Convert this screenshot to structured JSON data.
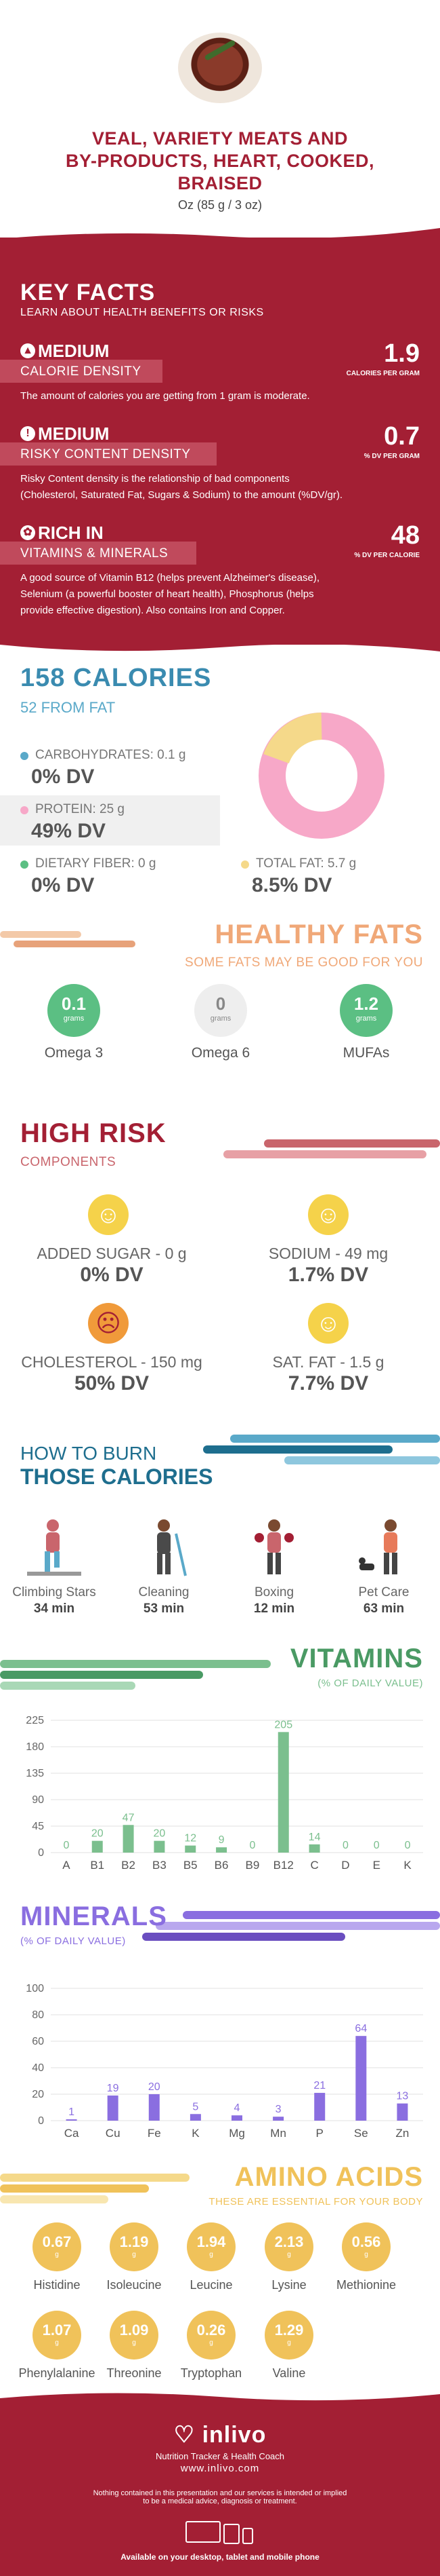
{
  "header": {
    "title_line1": "VEAL, VARIETY MEATS AND",
    "title_line2": "BY-PRODUCTS, HEART, COOKED,",
    "title_line3": "BRAISED",
    "serving": "Oz (85 g / 3 oz)"
  },
  "key_facts": {
    "title": "KEY FACTS",
    "subtitle": "LEARN ABOUT HEALTH BENEFITS OR RISKS",
    "items": [
      {
        "level": "MEDIUM",
        "label": "CALORIE DENSITY",
        "value": "1.9",
        "unit": "CALORIES PER GRAM",
        "icon": "flame-icon",
        "desc": "The amount of calories you are getting from 1 gram is moderate."
      },
      {
        "level": "MEDIUM",
        "label": "RISKY CONTENT DENSITY",
        "value": "0.7",
        "unit": "% DV PER GRAM",
        "icon": "warning-icon",
        "desc1": "Risky Content density is the relationship of bad components",
        "desc2": "(Cholesterol, Saturated Fat, Sugars & Sodium) to the amount (%DV/gr)."
      },
      {
        "level": "RICH  IN",
        "label": "VITAMINS & MINERALS",
        "value": "48",
        "unit": "% DV PER CALORIE",
        "icon": "leaf-icon",
        "desc1": "A good source of Vitamin B12 (helps prevent Alzheimer's disease),",
        "desc2": "Selenium (a powerful booster of heart health), Phosphorus (helps",
        "desc3": "provide effective digestion). Also contains Iron and Copper."
      }
    ]
  },
  "calories": {
    "title": "158 CALORIES",
    "from_fat": "52 FROM FAT",
    "carbs_label": "CARBOHYDRATES: 0.1 g",
    "carbs_dv": "0% DV",
    "protein_label": "PROTEIN: 25 g",
    "protein_dv": "49% DV",
    "fiber_label": "DIETARY FIBER: 0 g",
    "fiber_dv": "0% DV",
    "fat_label": "TOTAL FAT: 5.7 g",
    "fat_dv": "8.5% DV",
    "colors": {
      "carbs": "#5aa9c9",
      "protein": "#f7a8c8",
      "fiber": "#5bbf83",
      "fat": "#f5d98a"
    }
  },
  "healthy_fats": {
    "title": "HEALTHY FATS",
    "subtitle": "SOME FATS MAY BE GOOD FOR YOU",
    "unit": "grams",
    "items": [
      {
        "name": "Omega 3",
        "value": "0.1",
        "active": true
      },
      {
        "name": "Omega 6",
        "value": "0",
        "active": false
      },
      {
        "name": "MUFAs",
        "value": "1.2",
        "active": true
      }
    ]
  },
  "high_risk": {
    "title": "HIGH RISK",
    "subtitle": "COMPONENTS",
    "items": [
      {
        "label": "ADDED SUGAR - 0 g",
        "dv": "0% DV",
        "mood": "happy"
      },
      {
        "label": "SODIUM - 49 mg",
        "dv": "1.7% DV",
        "mood": "happy"
      },
      {
        "label": "CHOLESTEROL - 150 mg",
        "dv": "50% DV",
        "mood": "sad"
      },
      {
        "label": "SAT. FAT - 1.5 g",
        "dv": "7.7% DV",
        "mood": "happy"
      }
    ]
  },
  "burn": {
    "title1": "HOW TO BURN",
    "title2": "THOSE CALORIES",
    "items": [
      {
        "name": "Climbing Stars",
        "time": "34 min"
      },
      {
        "name": "Cleaning",
        "time": "53 min"
      },
      {
        "name": "Boxing",
        "time": "12 min"
      },
      {
        "name": "Pet Care",
        "time": "63 min"
      }
    ]
  },
  "vitamins": {
    "title": "VITAMINS",
    "subtitle": "(% OF DAILY VALUE)"
  },
  "minerals": {
    "title": "MINERALS",
    "subtitle": "(% OF DAILY VALUE)"
  },
  "chart_data": [
    {
      "type": "bar",
      "categories": [
        "A",
        "B1",
        "B2",
        "B3",
        "B5",
        "B6",
        "B9",
        "B12",
        "C",
        "D",
        "E",
        "K"
      ],
      "values": [
        0,
        20,
        47,
        20,
        12,
        9,
        0,
        205,
        14,
        0,
        0,
        0
      ],
      "ylim": [
        0,
        225
      ],
      "yticks": [
        0,
        45,
        90,
        135,
        180,
        225
      ],
      "color": "#7bbf8e"
    },
    {
      "type": "bar",
      "categories": [
        "Ca",
        "Cu",
        "Fe",
        "K",
        "Mg",
        "Mn",
        "P",
        "Se",
        "Zn"
      ],
      "values": [
        1,
        19,
        20,
        5,
        4,
        3,
        21,
        64,
        13
      ],
      "ylim": [
        0,
        100
      ],
      "yticks": [
        0,
        20,
        40,
        60,
        80,
        100
      ],
      "color": "#8a6ee0"
    }
  ],
  "amino": {
    "title": "AMINO ACIDS",
    "subtitle": "THESE ARE ESSENTIAL FOR YOUR BODY",
    "unit": "g",
    "items": [
      {
        "name": "Histidine",
        "value": "0.67"
      },
      {
        "name": "Isoleucine",
        "value": "1.19"
      },
      {
        "name": "Leucine",
        "value": "1.94"
      },
      {
        "name": "Lysine",
        "value": "2.13"
      },
      {
        "name": "Methionine",
        "value": "0.56"
      },
      {
        "name": "Phenylalanine",
        "value": "1.07"
      },
      {
        "name": "Threonine",
        "value": "1.09"
      },
      {
        "name": "Tryptophan",
        "value": "0.26"
      },
      {
        "name": "Valine",
        "value": "1.29"
      }
    ]
  },
  "footer": {
    "brand": "inlivo",
    "tagline": "Nutrition Tracker & Health Coach",
    "url": "www.inlivo.com",
    "disclaimer1": "Nothing contained in this presentation and our services is intended or implied",
    "disclaimer2": "to be a medical advice, diagnosis or treatment.",
    "devices": "Available on your desktop, tablet and mobile phone"
  }
}
